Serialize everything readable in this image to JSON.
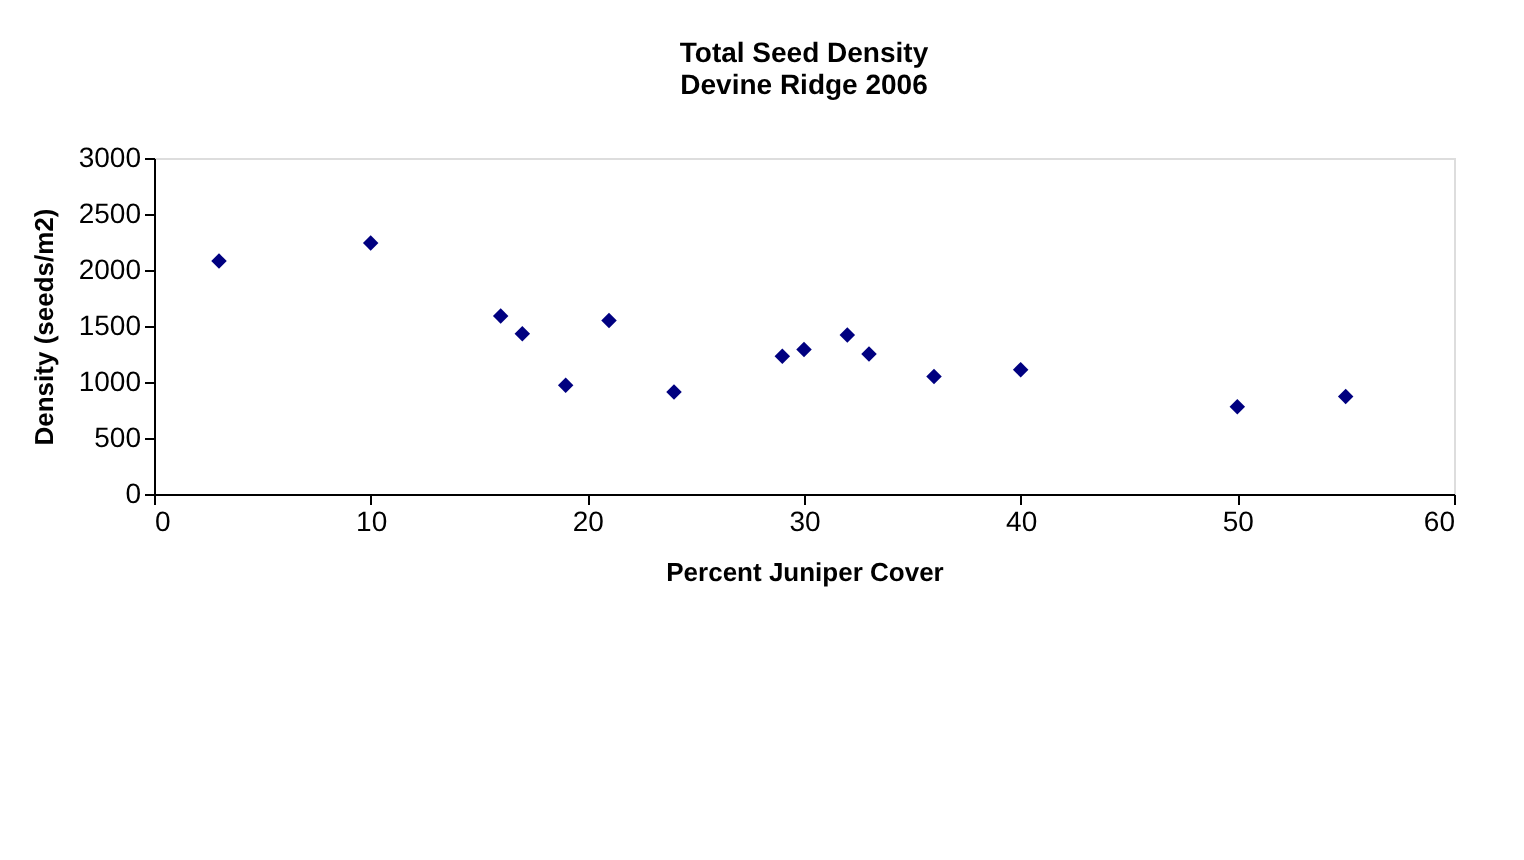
{
  "chart_data": {
    "type": "scatter",
    "title": "Total Seed Density\nDevine Ridge 2006",
    "xlabel": "Percent Juniper Cover",
    "ylabel": "Density (seeds/m2)",
    "x": [
      3,
      10,
      16,
      17,
      19,
      21,
      24,
      29,
      30,
      32,
      33,
      36,
      40,
      50,
      55
    ],
    "series": [
      {
        "color": "#000080",
        "values": [
          2080,
          2240,
          1590,
          1430,
          970,
          1550,
          910,
          1230,
          1290,
          1420,
          1250,
          1050,
          1110,
          780,
          870
        ]
      }
    ],
    "xlim": [
      0,
      60
    ],
    "xticks": [
      0,
      10,
      20,
      30,
      40,
      50,
      60
    ],
    "ylim": [
      0,
      3000
    ],
    "yticks": [
      0,
      500,
      1000,
      1500,
      2000,
      2500,
      3000
    ],
    "marker": "diamond",
    "grid": false,
    "legend": false
  }
}
